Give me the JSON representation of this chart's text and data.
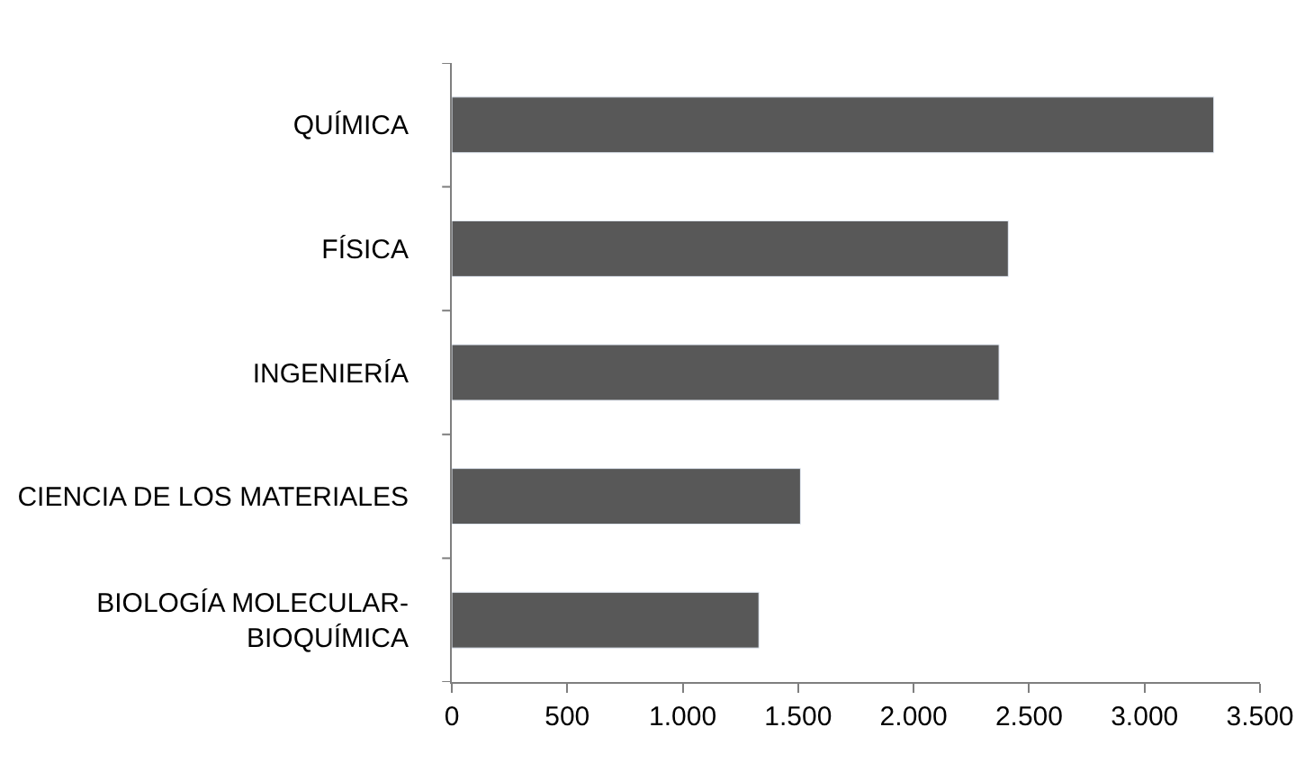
{
  "chart_data": {
    "type": "bar",
    "orientation": "horizontal",
    "categories": [
      "QUÍMICA",
      "FÍSICA",
      "INGENIERÍA",
      "CIENCIA DE LOS MATERIALES",
      "BIOLOGÍA MOLECULAR-\nBIOQUÍMICA"
    ],
    "series": [
      {
        "color": "#585858",
        "values": [
          3300,
          2410,
          2370,
          1510,
          1330
        ]
      }
    ],
    "xlim": [
      0,
      3500
    ],
    "xticks": [
      0,
      500,
      {
        "value": 1000,
        "label": "1.000"
      },
      {
        "value": 1500,
        "label": "1.500"
      },
      {
        "value": 2000,
        "label": "2.000"
      },
      {
        "value": 2500,
        "label": "2.500"
      },
      {
        "value": 3000,
        "label": "3.000"
      },
      {
        "value": 3500,
        "label": "3.500"
      }
    ],
    "legend": false
  }
}
